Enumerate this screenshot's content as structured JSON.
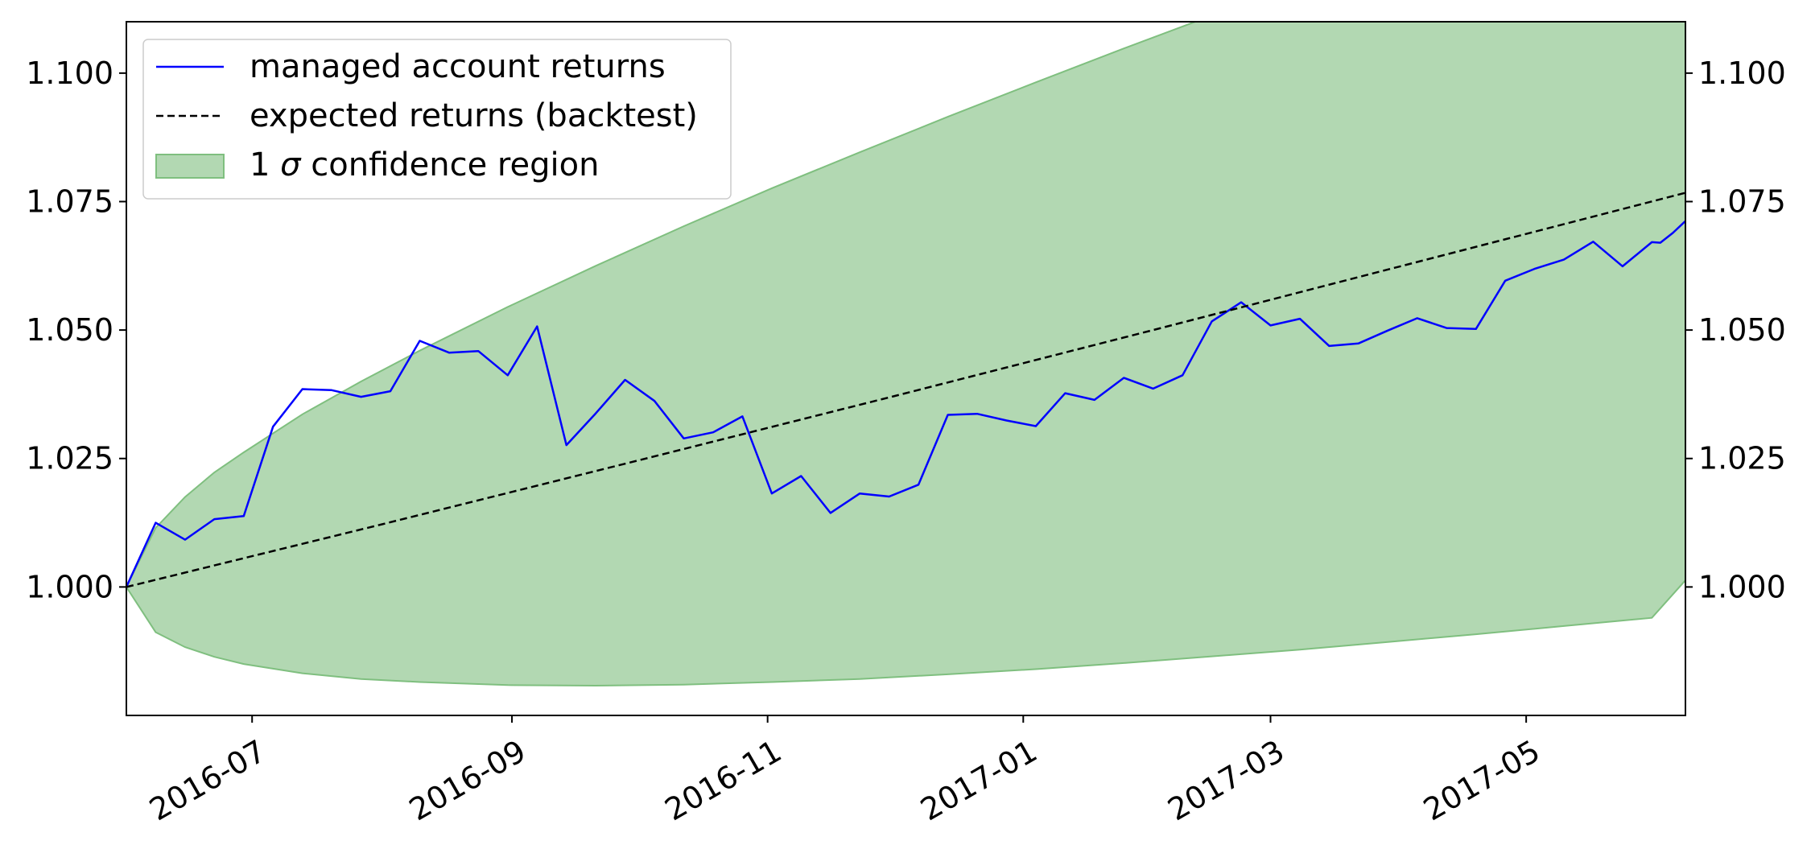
{
  "chart_data": {
    "type": "line",
    "title": "",
    "xlabel": "",
    "ylabel": "",
    "xlim": [
      "2016-06-01",
      "2017-06-08"
    ],
    "ylim": [
      0.975,
      1.11
    ],
    "x_ticks": [
      "2016-07",
      "2016-09",
      "2016-11",
      "2017-01",
      "2017-03",
      "2017-05"
    ],
    "y_ticks": [
      "1.000",
      "1.025",
      "1.050",
      "1.075",
      "1.100"
    ],
    "grid": false,
    "y_axis_right_mirror": true,
    "legend": {
      "location": "top-left",
      "entries": [
        {
          "label": "managed account returns",
          "style": "solid-line",
          "color": "#0000ff"
        },
        {
          "label": "expected returns (backtest)",
          "style": "dashed-line",
          "color": "#000000"
        },
        {
          "label_prefix": "1 ",
          "label_symbol": "σ",
          "label_suffix": " confidence region",
          "style": "patch",
          "color": "#b2d8b2",
          "edge_color": "#7fbf7f"
        }
      ]
    },
    "series": [
      {
        "name": "managed account returns",
        "kind": "line",
        "color": "#0000ff",
        "points": [
          [
            "2016-06-01",
            1.0
          ],
          [
            "2016-06-08",
            1.0125
          ],
          [
            "2016-06-15",
            1.0092
          ],
          [
            "2016-06-22",
            1.0132
          ],
          [
            "2016-06-29",
            1.0138
          ],
          [
            "2016-07-06",
            1.0312
          ],
          [
            "2016-07-13",
            1.0385
          ],
          [
            "2016-07-20",
            1.0383
          ],
          [
            "2016-07-27",
            1.037
          ],
          [
            "2016-08-03",
            1.0381
          ],
          [
            "2016-08-10",
            1.0479
          ],
          [
            "2016-08-17",
            1.0456
          ],
          [
            "2016-08-24",
            1.0459
          ],
          [
            "2016-08-31",
            1.0412
          ],
          [
            "2016-09-07",
            1.0507
          ],
          [
            "2016-09-14",
            1.0276
          ],
          [
            "2016-09-21",
            1.0338
          ],
          [
            "2016-09-28",
            1.0403
          ],
          [
            "2016-10-05",
            1.0362
          ],
          [
            "2016-10-12",
            1.0289
          ],
          [
            "2016-10-19",
            1.0301
          ],
          [
            "2016-10-26",
            1.0332
          ],
          [
            "2016-11-02",
            1.0182
          ],
          [
            "2016-11-09",
            1.0216
          ],
          [
            "2016-11-16",
            1.0144
          ],
          [
            "2016-11-23",
            1.0182
          ],
          [
            "2016-11-30",
            1.0176
          ],
          [
            "2016-12-07",
            1.0199
          ],
          [
            "2016-12-14",
            1.0335
          ],
          [
            "2016-12-21",
            1.0337
          ],
          [
            "2016-12-28",
            1.0324
          ],
          [
            "2017-01-04",
            1.0313
          ],
          [
            "2017-01-11",
            1.0377
          ],
          [
            "2017-01-18",
            1.0364
          ],
          [
            "2017-01-25",
            1.0407
          ],
          [
            "2017-02-01",
            1.0386
          ],
          [
            "2017-02-08",
            1.0412
          ],
          [
            "2017-02-15",
            1.0517
          ],
          [
            "2017-02-22",
            1.0554
          ],
          [
            "2017-03-01",
            1.0509
          ],
          [
            "2017-03-08",
            1.0522
          ],
          [
            "2017-03-15",
            1.0469
          ],
          [
            "2017-03-22",
            1.0474
          ],
          [
            "2017-03-29",
            1.0499
          ],
          [
            "2017-04-05",
            1.0523
          ],
          [
            "2017-04-12",
            1.0504
          ],
          [
            "2017-04-19",
            1.0502
          ],
          [
            "2017-04-26",
            1.0596
          ],
          [
            "2017-05-03",
            1.0619
          ],
          [
            "2017-05-10",
            1.0637
          ],
          [
            "2017-05-17",
            1.0672
          ],
          [
            "2017-05-24",
            1.0624
          ],
          [
            "2017-05-31",
            1.0671
          ],
          [
            "2017-06-02",
            1.067
          ],
          [
            "2017-06-05",
            1.0689
          ],
          [
            "2017-06-08",
            1.0712
          ]
        ]
      },
      {
        "name": "expected returns (backtest)",
        "kind": "line",
        "style": "dashed",
        "color": "#000000",
        "points": [
          [
            "2016-06-01",
            1.0
          ],
          [
            "2016-08-01",
            1.0122
          ],
          [
            "2016-10-01",
            1.0246
          ],
          [
            "2016-12-01",
            1.0371
          ],
          [
            "2017-02-01",
            1.05
          ],
          [
            "2017-04-01",
            1.0624
          ],
          [
            "2017-06-08",
            1.0767
          ]
        ]
      },
      {
        "name": "1 σ confidence region",
        "kind": "band",
        "color": "#b2d8b2",
        "edge_color": "#7fbf7f",
        "upper": [
          [
            "2016-06-01",
            1.0
          ],
          [
            "2016-06-08",
            1.0115
          ],
          [
            "2016-06-15",
            1.0175
          ],
          [
            "2016-06-22",
            1.0223
          ],
          [
            "2016-06-29",
            1.0262
          ],
          [
            "2016-07-13",
            1.0336
          ],
          [
            "2016-07-27",
            1.04
          ],
          [
            "2016-08-10",
            1.046
          ],
          [
            "2016-08-31",
            1.0545
          ],
          [
            "2016-09-21",
            1.0625
          ],
          [
            "2016-10-12",
            1.0702
          ],
          [
            "2016-11-02",
            1.0776
          ],
          [
            "2016-11-23",
            1.0846
          ],
          [
            "2016-12-14",
            1.0915
          ],
          [
            "2017-01-04",
            1.0982
          ],
          [
            "2017-01-25",
            1.1048
          ],
          [
            "2017-02-15",
            1.1112
          ]
        ],
        "upper_continues_beyond_ylim": true,
        "lower": [
          [
            "2016-06-01",
            1.0
          ],
          [
            "2016-06-08",
            0.9912
          ],
          [
            "2016-06-15",
            0.9883
          ],
          [
            "2016-06-22",
            0.9864
          ],
          [
            "2016-06-29",
            0.985
          ],
          [
            "2016-07-13",
            0.9832
          ],
          [
            "2016-07-27",
            0.9821
          ],
          [
            "2016-08-10",
            0.9815
          ],
          [
            "2016-08-31",
            0.9809
          ],
          [
            "2016-09-21",
            0.9808
          ],
          [
            "2016-10-12",
            0.981
          ],
          [
            "2016-11-02",
            0.9815
          ],
          [
            "2016-11-23",
            0.9821
          ],
          [
            "2016-12-14",
            0.983
          ],
          [
            "2017-01-04",
            0.984
          ],
          [
            "2017-01-25",
            0.9852
          ],
          [
            "2017-02-15",
            0.9865
          ],
          [
            "2017-03-08",
            0.9878
          ],
          [
            "2017-03-29",
            0.9893
          ],
          [
            "2017-04-19",
            0.9908
          ],
          [
            "2017-05-10",
            0.9924
          ],
          [
            "2017-05-31",
            0.994
          ],
          [
            "2017-06-08",
            1.0013
          ]
        ]
      }
    ]
  }
}
